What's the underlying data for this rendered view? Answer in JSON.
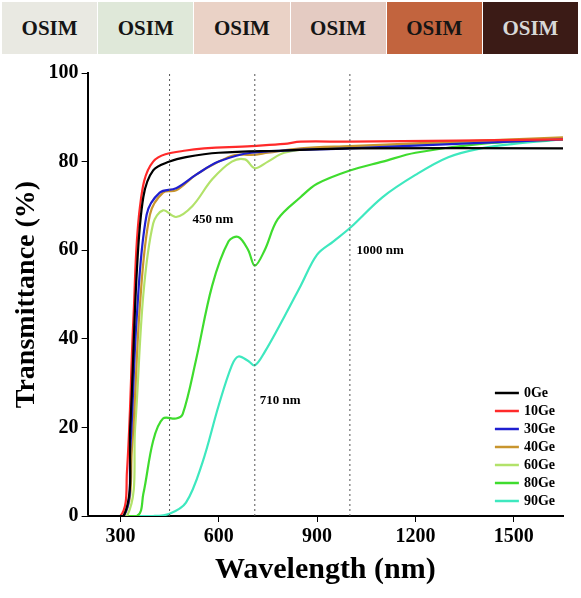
{
  "photo_strip": [
    "OSIM",
    "OSIM",
    "OSIM",
    "OSIM",
    "OSIM",
    "OSIM"
  ],
  "chart_data": {
    "type": "line",
    "x_label": "Wavelength (nm)",
    "y_label": "Transmittance (%)",
    "xlim": [
      200,
      1650
    ],
    "xticks": [
      300,
      600,
      900,
      1200,
      1500
    ],
    "ylim": [
      0,
      100
    ],
    "yticks": [
      0,
      20,
      40,
      60,
      80,
      100
    ],
    "grid": false,
    "legend": "lower right",
    "vlines": [
      450,
      710,
      1000
    ],
    "annotations": [
      {
        "text": "450 nm",
        "x": 520,
        "y": 67
      },
      {
        "text": "710 nm",
        "x": 725,
        "y": 26
      },
      {
        "text": "1000 nm",
        "x": 1020,
        "y": 60
      }
    ],
    "series": [
      {
        "name": "0Ge",
        "color": "#000000",
        "x": [
          200,
          310,
          330,
          350,
          370,
          400,
          450,
          500,
          600,
          800,
          1000,
          1650
        ],
        "values": [
          0,
          0,
          20,
          55,
          72,
          78,
          80,
          81,
          82,
          82.5,
          83,
          83
        ]
      },
      {
        "name": "10Ge",
        "color": "#ff2a2a",
        "x": [
          200,
          300,
          320,
          340,
          360,
          400,
          500,
          700,
          800,
          850,
          1000,
          1650
        ],
        "values": [
          0,
          0,
          10,
          45,
          70,
          80,
          82.5,
          83.5,
          84,
          84.5,
          84.5,
          85
        ]
      },
      {
        "name": "30Ge",
        "color": "#1f1fd0",
        "x": [
          200,
          310,
          330,
          350,
          380,
          420,
          470,
          530,
          600,
          700,
          1000,
          1650
        ],
        "values": [
          0,
          0,
          15,
          45,
          68,
          73,
          74,
          77,
          80,
          82,
          83,
          85
        ]
      },
      {
        "name": "40Ge",
        "color": "#c8952e",
        "x": [
          200,
          310,
          335,
          360,
          390,
          430,
          470,
          530,
          600,
          650,
          700,
          750,
          850,
          1000,
          1650
        ],
        "values": [
          0,
          0,
          15,
          48,
          68,
          73,
          73.5,
          77,
          80,
          81.5,
          81.5,
          82,
          83,
          83.5,
          85.5
        ]
      },
      {
        "name": "60Ge",
        "color": "#b2e26a",
        "x": [
          200,
          320,
          345,
          370,
          400,
          430,
          470,
          520,
          580,
          640,
          680,
          710,
          750,
          800,
          900,
          1650
        ],
        "values": [
          0,
          0,
          20,
          50,
          66,
          69,
          67.5,
          70,
          76,
          80,
          80.5,
          78.5,
          80,
          82,
          83,
          85
        ]
      },
      {
        "name": "80Ge",
        "color": "#3fdc2e",
        "x": [
          200,
          350,
          370,
          400,
          430,
          470,
          490,
          530,
          580,
          630,
          660,
          690,
          710,
          740,
          780,
          850,
          900,
          1000,
          1100,
          1200,
          1400,
          1650
        ],
        "values": [
          0,
          0,
          5,
          17,
          22,
          22,
          23,
          35,
          52,
          62,
          63,
          60,
          56.5,
          60,
          67,
          72,
          75,
          78,
          80,
          82,
          84,
          85
        ]
      },
      {
        "name": "90Ge",
        "color": "#3ee8bf",
        "x": [
          200,
          400,
          450,
          500,
          550,
          600,
          640,
          660,
          690,
          710,
          740,
          800,
          850,
          900,
          950,
          1000,
          1100,
          1200,
          1300,
          1400,
          1500,
          1650
        ],
        "values": [
          0,
          0,
          0.5,
          3,
          12,
          25,
          34,
          36,
          35,
          34,
          37,
          45,
          52,
          59,
          62,
          65,
          72,
          77,
          81,
          83,
          84,
          85
        ]
      }
    ]
  }
}
